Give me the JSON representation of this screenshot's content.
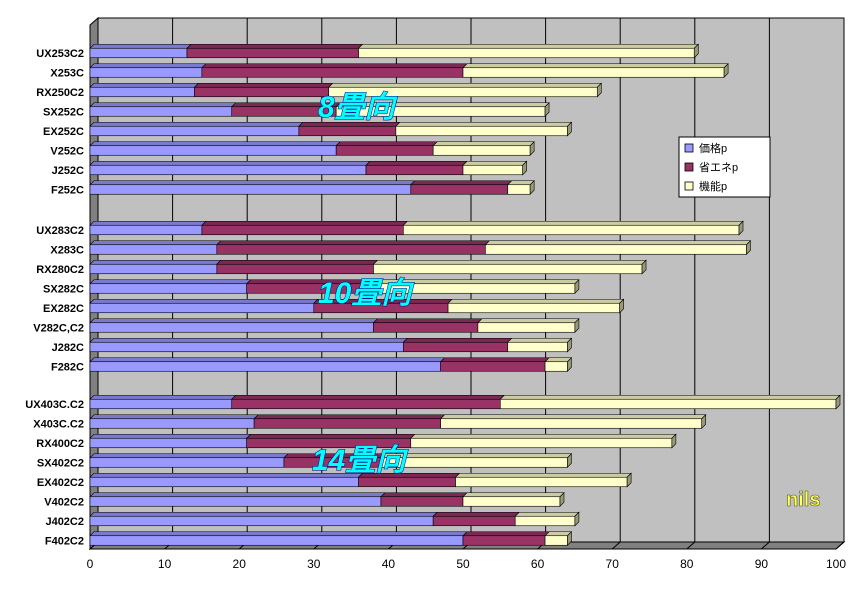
{
  "chart_data": {
    "type": "bar",
    "orientation": "horizontal",
    "stacked": true,
    "three_d": true,
    "xlim": [
      0,
      100
    ],
    "x_ticks": [
      "0",
      "10",
      "20",
      "30",
      "40",
      "50",
      "60",
      "70",
      "80",
      "90",
      "100"
    ],
    "grid": true,
    "legend_position": "right",
    "groups": [
      {
        "label": "8畳向",
        "categories": [
          "UX253C2",
          "X253C",
          "RX250C2",
          "SX252C",
          "EX252C",
          "V252C",
          "J252C",
          "F252C"
        ],
        "series": [
          {
            "name": "価格p",
            "values": [
              13,
              15,
              14,
              19,
              28,
              33,
              37,
              43
            ]
          },
          {
            "name": "省エネp",
            "values": [
              23,
              35,
              18,
              14,
              13,
              13,
              13,
              13
            ]
          },
          {
            "name": "機能p",
            "values": [
              45,
              35,
              36,
              28,
              23,
              13,
              8,
              3
            ]
          }
        ]
      },
      {
        "label": "10畳向",
        "categories": [
          "UX283C2",
          "X283C",
          "RX280C2",
          "SX282C",
          "EX282C",
          "V282C,C2",
          "J282C",
          "F282C"
        ],
        "series": [
          {
            "name": "価格p",
            "values": [
              15,
              17,
              17,
              21,
              30,
              38,
              42,
              47
            ]
          },
          {
            "name": "省エネp",
            "values": [
              27,
              36,
              21,
              17,
              18,
              14,
              14,
              14
            ]
          },
          {
            "name": "機能p",
            "values": [
              45,
              35,
              36,
              27,
              23,
              13,
              8,
              3
            ]
          }
        ]
      },
      {
        "label": "14畳向",
        "categories": [
          "UX403C.C2",
          "X403C.C2",
          "RX400C2",
          "SX402C2",
          "EX402C2",
          "V402C2",
          "J402C2",
          "F402C2"
        ],
        "series": [
          {
            "name": "価格p",
            "values": [
              19,
              22,
              21,
              26,
              36,
              39,
              46,
              50
            ]
          },
          {
            "name": "省エネp",
            "values": [
              36,
              25,
              22,
              13,
              13,
              11,
              11,
              11
            ]
          },
          {
            "name": "機能p",
            "values": [
              45,
              35,
              35,
              25,
              23,
              13,
              8,
              3
            ]
          }
        ]
      }
    ],
    "colors": {
      "価格p": "#9999ff",
      "省エネp": "#993366",
      "機能p": "#ffffcc",
      "plot_area": "#c0c0c0",
      "grid": "#000000",
      "label_fill": "#00ffff"
    },
    "annotation": "nils"
  }
}
